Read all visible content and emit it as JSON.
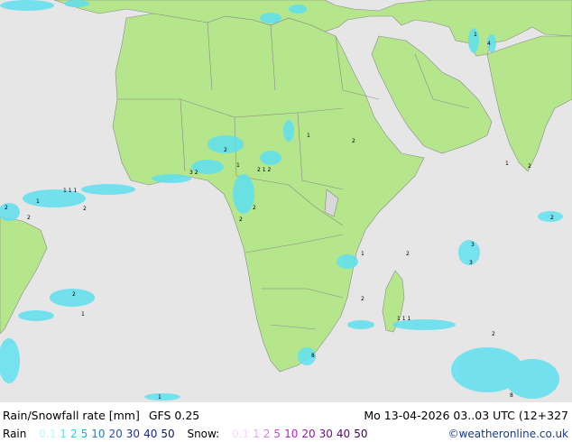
{
  "title": "Rain/Snowfall rate [mm]",
  "model": "GFS 0.25",
  "datetime": "Mo 13-04-2026 03..03 UTC (12+327",
  "legend": {
    "rain_label": "Rain",
    "rain_values": [
      {
        "v": "0.1",
        "color": "#bff3ff"
      },
      {
        "v": "1",
        "color": "#66e0f5"
      },
      {
        "v": "2",
        "color": "#33c8ee"
      },
      {
        "v": "5",
        "color": "#1aa8e6"
      },
      {
        "v": "10",
        "color": "#1f7ad8"
      },
      {
        "v": "20",
        "color": "#2452c8"
      },
      {
        "v": "30",
        "color": "#1f2fae"
      },
      {
        "v": "40",
        "color": "#141f8c"
      },
      {
        "v": "50",
        "color": "#0b1466"
      }
    ],
    "snow_label": "Snow:",
    "snow_values": [
      {
        "v": "0.1",
        "color": "#f6d8f8"
      },
      {
        "v": "1",
        "color": "#e8a8f0"
      },
      {
        "v": "2",
        "color": "#dc7ae8"
      },
      {
        "v": "5",
        "color": "#cf45de"
      },
      {
        "v": "10",
        "color": "#b920cc"
      },
      {
        "v": "20",
        "color": "#9a10b0"
      },
      {
        "v": "30",
        "color": "#7a0a92"
      },
      {
        "v": "40",
        "color": "#5c0672"
      },
      {
        "v": "50",
        "color": "#40034f"
      }
    ]
  },
  "credit": "©weatheronline.co.uk",
  "colors": {
    "land": "#b5e68c",
    "sea": "#e6e6e6",
    "border": "#8a8a8a",
    "rain": "#5fe0f0"
  }
}
